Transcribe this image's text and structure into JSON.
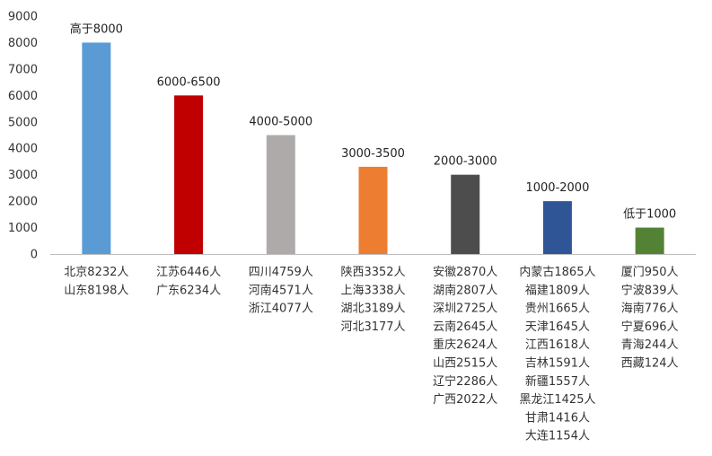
{
  "chart_data": {
    "type": "bar",
    "title": "",
    "xlabel": "",
    "ylabel": "",
    "ylim": [
      0,
      9000
    ],
    "yticks": [
      0,
      1000,
      2000,
      3000,
      4000,
      5000,
      6000,
      7000,
      8000,
      9000
    ],
    "grid": false,
    "legend": "none",
    "categories": [
      [
        "北京8232人",
        "山东8198人"
      ],
      [
        "江苏6446人",
        "广东6234人"
      ],
      [
        "四川4759人",
        "河南4571人",
        "浙江4077人"
      ],
      [
        "陕西3352人",
        "上海3338人",
        "湖北3189人",
        "河北3177人"
      ],
      [
        "安徽2870人",
        "湖南2807人",
        "深圳2725人",
        "云南2645人",
        "重庆2624人",
        "山西2515人",
        "辽宁2286人",
        "广西2022人"
      ],
      [
        "内蒙古1865人",
        "福建1809人",
        "贵州1665人",
        "天津1645人",
        "江西1618人",
        "吉林1591人",
        "新疆1557人",
        "黑龙江1425人",
        "甘肃1416人",
        "大连1154人"
      ],
      [
        "厦门950人",
        "宁波839人",
        "海南776人",
        "宁夏696人",
        "青海244人",
        "西藏124人"
      ]
    ],
    "values": [
      8000,
      6000,
      4500,
      3300,
      3000,
      2000,
      1000
    ],
    "data_labels": [
      "高于8000",
      "6000-6500",
      "4000-5000",
      "3000-3500",
      "2000-3000",
      "1000-2000",
      "低于1000"
    ],
    "colors": [
      "#5b9bd5",
      "#c00000",
      "#aeaaaa",
      "#ed7d31",
      "#4d4d4d",
      "#2f5597",
      "#548235"
    ]
  }
}
